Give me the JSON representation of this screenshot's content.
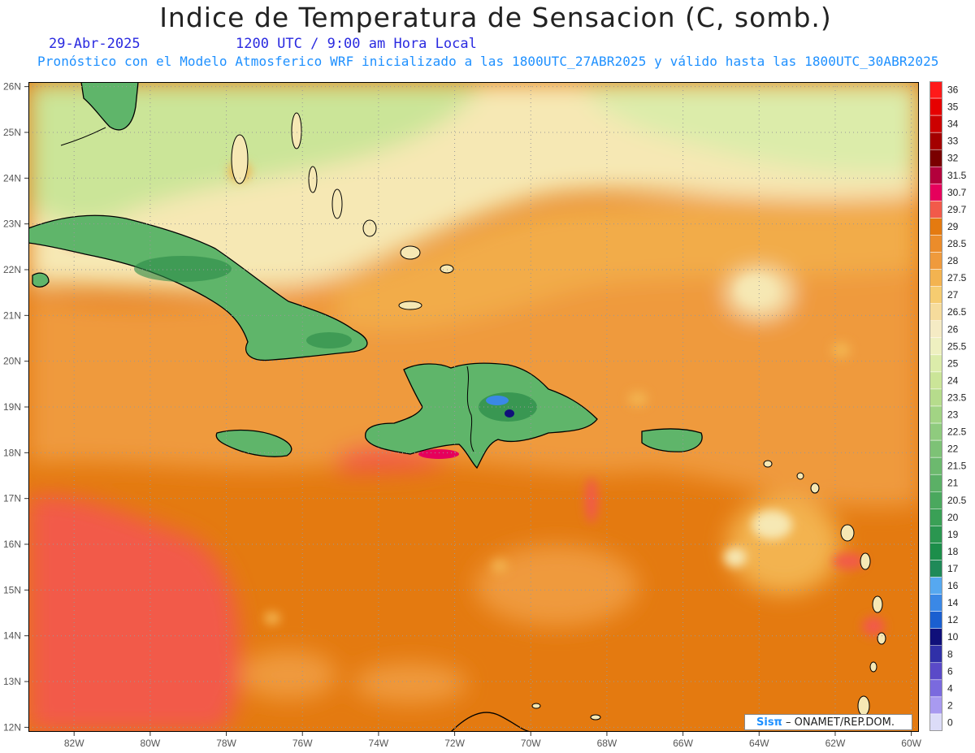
{
  "header": {
    "title": "Indice de Temperatura de Sensacion (C, somb.)",
    "date": "29-Abr-2025",
    "time": "1200 UTC / 9:00 am Hora Local",
    "subtitle": "Pronóstico con el Modelo Atmosferico WRF inicializado a las 1800UTC_27ABR2025 y válido hasta las  1800UTC_30ABR2025"
  },
  "credit": {
    "logo": "Sisπ",
    "text": " – ONAMET/REP.DOM."
  },
  "map": {
    "lon_range": [
      -83.2,
      -59.8
    ],
    "lat_range": [
      11.9,
      26.1
    ],
    "lon_labels": [
      "82W",
      "80W",
      "78W",
      "76W",
      "74W",
      "72W",
      "70W",
      "68W",
      "66W",
      "64W",
      "62W",
      "60W"
    ],
    "lat_labels": [
      "26N",
      "25N",
      "24N",
      "23N",
      "22N",
      "21N",
      "20N",
      "19N",
      "18N",
      "17N",
      "16N",
      "15N",
      "14N",
      "13N",
      "12N"
    ],
    "colors": {
      "warm_ocean": "#e47a10",
      "hot": "#f25a4a",
      "moderate": "#ef9a3c",
      "mild": "#f2c560",
      "cool": "#f6e8b4",
      "land_green": "#5fb56a",
      "land_dark_green": "#2a8a48",
      "coast": "#000000"
    },
    "land_features": [
      "Florida",
      "Cuba",
      "Jamaica",
      "Hispaniola",
      "Puerto Rico",
      "Bahamas",
      "Lesser Antilles",
      "South America"
    ]
  },
  "colorbar": {
    "levels": [
      {
        "label": "36",
        "color": "#ff1a1a"
      },
      {
        "label": "35",
        "color": "#e60000"
      },
      {
        "label": "34",
        "color": "#cc0000"
      },
      {
        "label": "33",
        "color": "#a40000"
      },
      {
        "label": "32",
        "color": "#7a0000"
      },
      {
        "label": "31.5",
        "color": "#b3003c"
      },
      {
        "label": "30.7",
        "color": "#e6005c"
      },
      {
        "label": "29.7",
        "color": "#f25a4a"
      },
      {
        "label": "29",
        "color": "#e47a10"
      },
      {
        "label": "28.5",
        "color": "#eb8c2a"
      },
      {
        "label": "28",
        "color": "#ef9a3c"
      },
      {
        "label": "27.5",
        "color": "#f3b350"
      },
      {
        "label": "27",
        "color": "#f6cc70"
      },
      {
        "label": "26.5",
        "color": "#f6dc9c"
      },
      {
        "label": "26",
        "color": "#f5ebc4"
      },
      {
        "label": "25.5",
        "color": "#eef0c0"
      },
      {
        "label": "25",
        "color": "#dcecaa"
      },
      {
        "label": "24",
        "color": "#cbe598"
      },
      {
        "label": "23.5",
        "color": "#b6dc8c"
      },
      {
        "label": "23",
        "color": "#a2d484"
      },
      {
        "label": "22.5",
        "color": "#8fcb7e"
      },
      {
        "label": "22",
        "color": "#7dc276"
      },
      {
        "label": "21.5",
        "color": "#6cb96e"
      },
      {
        "label": "21",
        "color": "#5bb066"
      },
      {
        "label": "20.5",
        "color": "#4aa85e"
      },
      {
        "label": "20",
        "color": "#3aa056"
      },
      {
        "label": "19",
        "color": "#2a9650"
      },
      {
        "label": "18",
        "color": "#1c8e4a"
      },
      {
        "label": "17",
        "color": "#1f8a58"
      },
      {
        "label": "16",
        "color": "#56a8f0"
      },
      {
        "label": "14",
        "color": "#3a88e6"
      },
      {
        "label": "12",
        "color": "#1a5fd0"
      },
      {
        "label": "10",
        "color": "#10107a"
      },
      {
        "label": "8",
        "color": "#3030a8"
      },
      {
        "label": "6",
        "color": "#5a4ac8"
      },
      {
        "label": "4",
        "color": "#7a6ade"
      },
      {
        "label": "2",
        "color": "#a89af0"
      },
      {
        "label": "0",
        "color": "#dcdcf8"
      }
    ]
  }
}
